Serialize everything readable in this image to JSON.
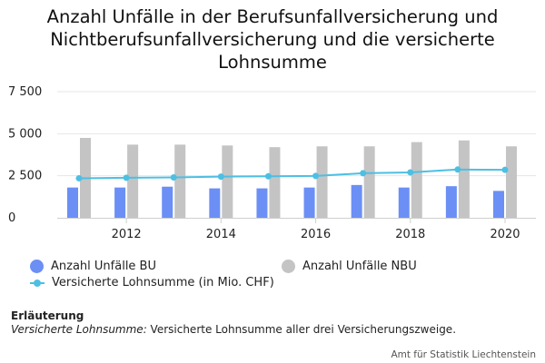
{
  "title": {
    "lines": [
      "Anzahl Unfälle in der Berufsunfallversicherung und",
      "Nichtberufsunfallversicherung und die versicherte",
      "Lohnsumme"
    ]
  },
  "chart_data": {
    "type": "bar",
    "x": [
      2011,
      2012,
      2013,
      2014,
      2015,
      2016,
      2017,
      2018,
      2019,
      2020
    ],
    "x_tick_labels": [
      "2012",
      "2014",
      "2016",
      "2018",
      "2020"
    ],
    "y_tick_labels": [
      "7 500",
      "5 000",
      "2 500",
      "0"
    ],
    "ylim": [
      0,
      7500
    ],
    "grid": true,
    "series": [
      {
        "name": "Anzahl Unfälle BU",
        "type": "bar",
        "color": "#6b8ff5",
        "values": [
          1800,
          1800,
          1850,
          1750,
          1750,
          1800,
          1950,
          1800,
          1880,
          1600
        ]
      },
      {
        "name": "Anzahl Unfälle NBU",
        "type": "bar",
        "color": "#c4c4c4",
        "values": [
          4750,
          4350,
          4350,
          4300,
          4200,
          4250,
          4250,
          4500,
          4600,
          4250
        ]
      },
      {
        "name": "Versicherte Lohnsumme (in Mio. CHF)",
        "type": "line",
        "color": "#4dbfe3",
        "values": [
          2350,
          2380,
          2400,
          2450,
          2470,
          2490,
          2650,
          2700,
          2870,
          2850
        ]
      }
    ],
    "legend_position": "bottom"
  },
  "note": {
    "heading": "Erläuterung",
    "term": "Versicherte Lohnsumme:",
    "text": " Versicherte Lohnsumme aller drei Versicherungszweige."
  },
  "source": "Amt für Statistik Liechtenstein"
}
